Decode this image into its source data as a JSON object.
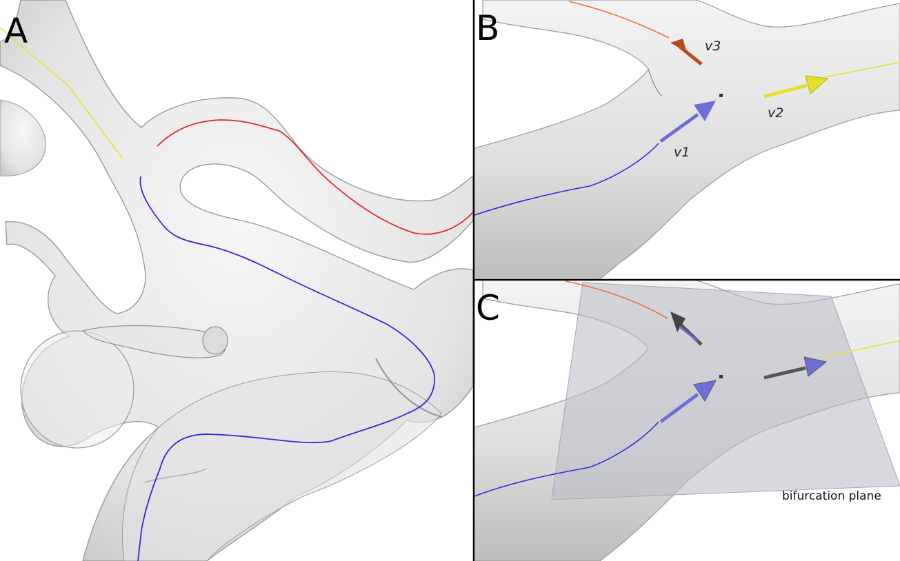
{
  "panels": {
    "a": {
      "letter": "A"
    },
    "b": {
      "letter": "B",
      "vectors": {
        "v1": "v1",
        "v2": "v2",
        "v3": "v3"
      }
    },
    "c": {
      "letter": "C",
      "plane_label": "bifurcation plane"
    }
  },
  "colors": {
    "vessel_fill": "#e9e9e9",
    "vessel_edge": "#9a9a9a",
    "centerline_blue": "#2b2bdc",
    "centerline_red": "#e02a2a",
    "centerline_yellow": "#e8e23a",
    "centerline_orange": "#e8703a",
    "vector_blue": "#6e6ed8",
    "vector_yellow": "#e6df2a",
    "vector_brown": "#b84b1e",
    "plane": "#b9bcc6"
  }
}
